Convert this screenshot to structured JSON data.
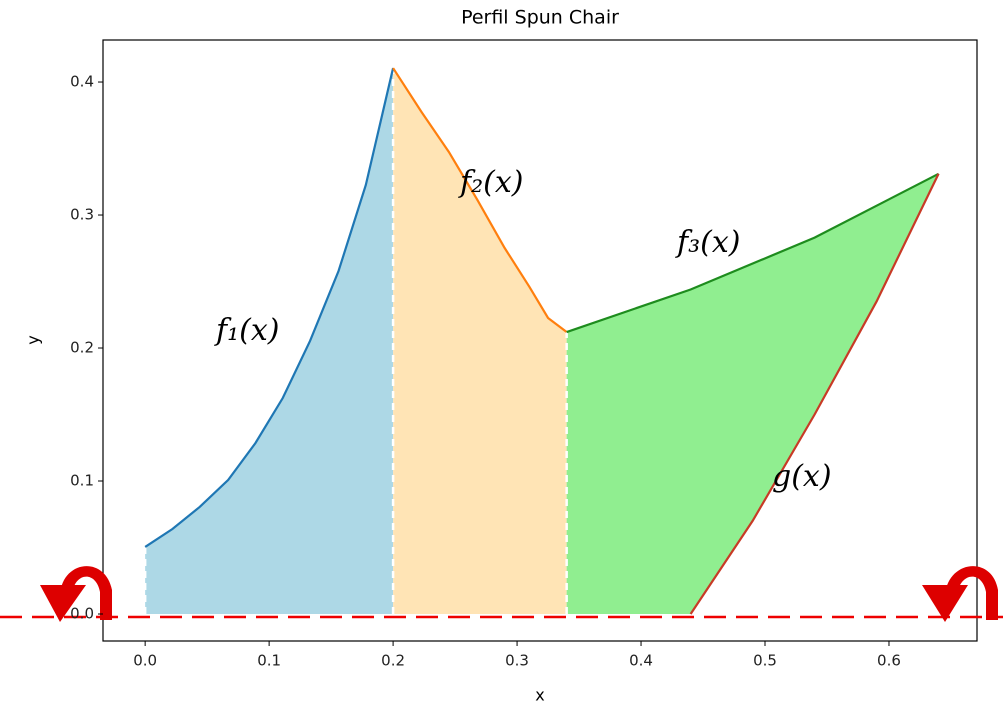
{
  "chart_data": {
    "type": "line",
    "title": "Perfil Spun Chair",
    "x_label": "x",
    "y_label": "y",
    "xlim": [
      -0.034,
      0.671
    ],
    "ylim": [
      -0.0203,
      0.4316
    ],
    "xticks": [
      {
        "value": 0,
        "label": "0.0"
      },
      0.1,
      0.2,
      0.3,
      0.4,
      0.5,
      0.6
    ],
    "yticks": [
      {
        "value": 0,
        "label": "0.0"
      },
      0.1,
      0.2,
      0.3,
      0.4
    ],
    "series": [
      {
        "name": "f₁(x)",
        "color": "#1f77b4",
        "fill": "#add8e6",
        "x": [
          0,
          0.022,
          0.044,
          0.067,
          0.089,
          0.111,
          0.133,
          0.156,
          0.178,
          0.2
        ],
        "values": [
          0.0504,
          0.0639,
          0.0805,
          0.1008,
          0.1286,
          0.1624,
          0.2053,
          0.2579,
          0.3226,
          0.4105
        ]
      },
      {
        "name": "f₂(x)",
        "color": "#ff7f0e",
        "fill": "#ffe4b5",
        "x": [
          0.2,
          0.223,
          0.245,
          0.268,
          0.29,
          0.31,
          0.325,
          0.34
        ],
        "values": [
          0.4105,
          0.3774,
          0.3474,
          0.3113,
          0.2752,
          0.2459,
          0.2226,
          0.212
        ]
      },
      {
        "name": "f₃(x)",
        "color": "#1e8c1e",
        "fill": "#90ee90",
        "x": [
          0.34,
          0.44,
          0.54,
          0.64
        ],
        "values": [
          0.212,
          0.244,
          0.283,
          0.331
        ]
      },
      {
        "name": "g(x)",
        "color": "#c83a26",
        "x": [
          0.44,
          0.49,
          0.54,
          0.59,
          0.64
        ],
        "values": [
          0,
          0.07,
          0.15,
          0.235,
          0.331
        ]
      }
    ]
  }
}
